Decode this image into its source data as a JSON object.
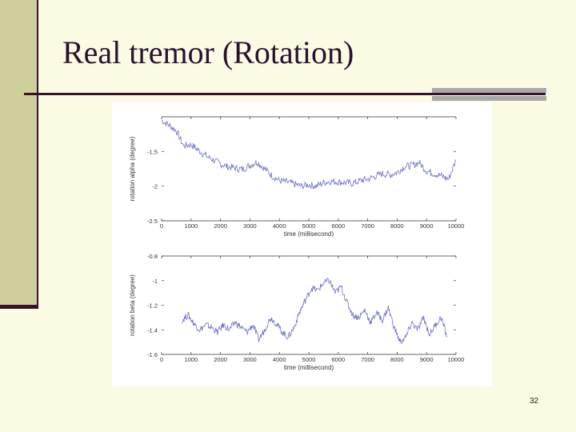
{
  "slide": {
    "title": "Real tremor (Rotation)",
    "page_number": "32"
  },
  "colors": {
    "background": "#fbfbe3",
    "sidebar": "#cfcf9b",
    "accent_dark": "#3a1030",
    "series_line": "#6e70c8"
  },
  "chart_data": [
    {
      "type": "line",
      "xlabel": "time (millisecond)",
      "ylabel": "rotation alpha (degree)",
      "xlim": [
        0,
        10000
      ],
      "ylim": [
        -2.5,
        -1.0
      ],
      "x_ticks": [
        "0",
        "1000",
        "2000",
        "3000",
        "4000",
        "5000",
        "6000",
        "7000",
        "8000",
        "9000",
        "10000"
      ],
      "y_ticks": [
        {
          "value": -1.5,
          "label": "-1.5"
        },
        {
          "value": -2.0,
          "label": "-2"
        },
        {
          "value": -2.5,
          "label": "-2.5"
        }
      ],
      "grid": false,
      "series": [
        {
          "x": [
            0,
            250,
            500,
            750,
            1000,
            1250,
            1500,
            1750,
            2000,
            2250,
            2500,
            2750,
            3000,
            3250,
            3500,
            3750,
            4000,
            4250,
            4500,
            4750,
            5000,
            5250,
            5500,
            5750,
            6000,
            6250,
            6500,
            6750,
            7000,
            7250,
            7500,
            7750,
            8000,
            8250,
            8500,
            8750,
            9000,
            9250,
            9500,
            9750,
            10000
          ],
          "y": [
            -1.05,
            -1.12,
            -1.2,
            -1.42,
            -1.4,
            -1.48,
            -1.56,
            -1.62,
            -1.68,
            -1.72,
            -1.74,
            -1.76,
            -1.7,
            -1.65,
            -1.75,
            -1.85,
            -1.92,
            -1.94,
            -1.97,
            -2.0,
            -1.98,
            -2.0,
            -1.95,
            -1.93,
            -1.94,
            -1.95,
            -1.96,
            -1.92,
            -1.9,
            -1.86,
            -1.82,
            -1.84,
            -1.8,
            -1.72,
            -1.7,
            -1.66,
            -1.78,
            -1.82,
            -1.85,
            -1.9,
            -1.62
          ]
        }
      ]
    },
    {
      "type": "line",
      "xlabel": "time (millisecond)",
      "ylabel": "rotation beta (degree)",
      "xlim": [
        0,
        10000
      ],
      "ylim": [
        -1.6,
        -0.8
      ],
      "x_ticks": [
        "0",
        "1000",
        "2000",
        "3000",
        "4000",
        "5000",
        "6000",
        "7000",
        "8000",
        "9000",
        "10000"
      ],
      "y_ticks": [
        {
          "value": -0.8,
          "label": "-0.8"
        },
        {
          "value": -1.0,
          "label": "-1"
        },
        {
          "value": -1.2,
          "label": "-1.2"
        },
        {
          "value": -1.4,
          "label": "-1.4"
        },
        {
          "value": -1.6,
          "label": "-1.6"
        }
      ],
      "grid": false,
      "series": [
        {
          "x": [
            700,
            900,
            1100,
            1300,
            1500,
            1700,
            1900,
            2100,
            2300,
            2500,
            2700,
            2900,
            3100,
            3300,
            3500,
            3700,
            3900,
            4100,
            4300,
            4500,
            4700,
            4900,
            5100,
            5300,
            5500,
            5700,
            5900,
            6100,
            6300,
            6500,
            6700,
            6900,
            7100,
            7300,
            7500,
            7700,
            7900,
            8100,
            8300,
            8500,
            8700,
            8900,
            9100,
            9300,
            9500,
            9700
          ],
          "y": [
            -1.32,
            -1.28,
            -1.35,
            -1.4,
            -1.36,
            -1.38,
            -1.42,
            -1.36,
            -1.4,
            -1.34,
            -1.38,
            -1.42,
            -1.36,
            -1.48,
            -1.4,
            -1.3,
            -1.35,
            -1.42,
            -1.46,
            -1.38,
            -1.25,
            -1.15,
            -1.06,
            -1.08,
            -1.02,
            -1.0,
            -1.1,
            -1.05,
            -1.18,
            -1.28,
            -1.3,
            -1.24,
            -1.34,
            -1.26,
            -1.32,
            -1.22,
            -1.38,
            -1.5,
            -1.46,
            -1.34,
            -1.4,
            -1.3,
            -1.44,
            -1.36,
            -1.3,
            -1.46
          ]
        }
      ]
    }
  ]
}
